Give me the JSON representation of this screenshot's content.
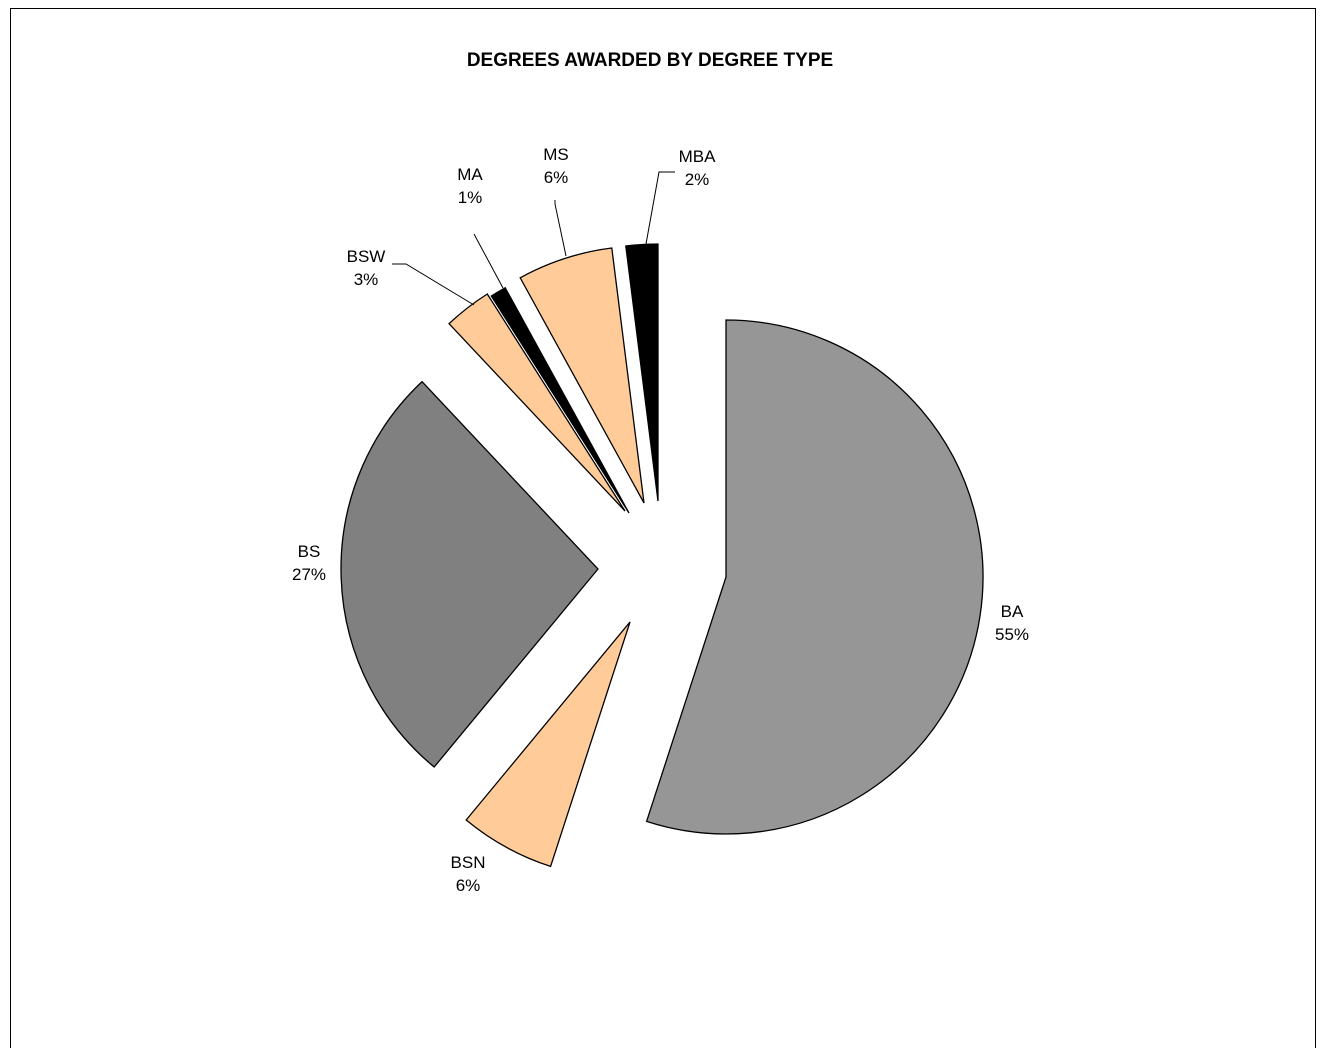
{
  "chart_data": {
    "type": "pie",
    "title": "DEGREES AWARDED BY DEGREE TYPE",
    "slices": [
      {
        "label": "BA",
        "percent_label": "55%",
        "value": 55,
        "color": "#969696"
      },
      {
        "label": "BSN",
        "percent_label": "6%",
        "value": 6,
        "color": "#ffcc99"
      },
      {
        "label": "BS",
        "percent_label": "27%",
        "value": 27,
        "color": "#808080"
      },
      {
        "label": "BSW",
        "percent_label": "3%",
        "value": 3,
        "color": "#ffcc99"
      },
      {
        "label": "MA",
        "percent_label": "1%",
        "value": 1,
        "color": "#000000"
      },
      {
        "label": "MS",
        "percent_label": "6%",
        "value": 6,
        "color": "#ffcc99"
      },
      {
        "label": "MBA",
        "percent_label": "2%",
        "value": 2,
        "color": "#000000"
      }
    ],
    "exploded": true,
    "legend": "none"
  }
}
